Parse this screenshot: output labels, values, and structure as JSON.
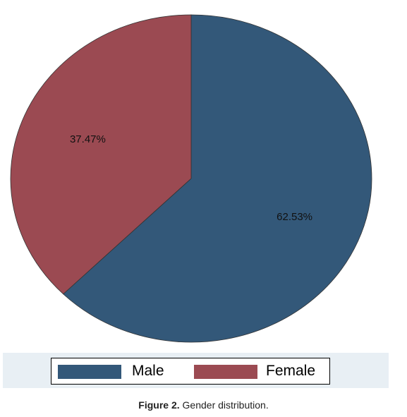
{
  "chart_data": {
    "type": "pie",
    "categories": [
      "Male",
      "Female"
    ],
    "values": [
      62.53,
      37.47
    ],
    "data_labels": [
      "62.53%",
      "37.47%"
    ],
    "colors": [
      "#335879",
      "#9b4a52"
    ],
    "start_angle": "12 o'clock, clockwise",
    "legend_position": "bottom"
  },
  "legend": {
    "items": [
      {
        "label": "Male",
        "color": "#335879"
      },
      {
        "label": "Female",
        "color": "#9b4a52"
      }
    ]
  },
  "caption": {
    "prefix": "Figure 2.",
    "text": "Gender distribution."
  }
}
